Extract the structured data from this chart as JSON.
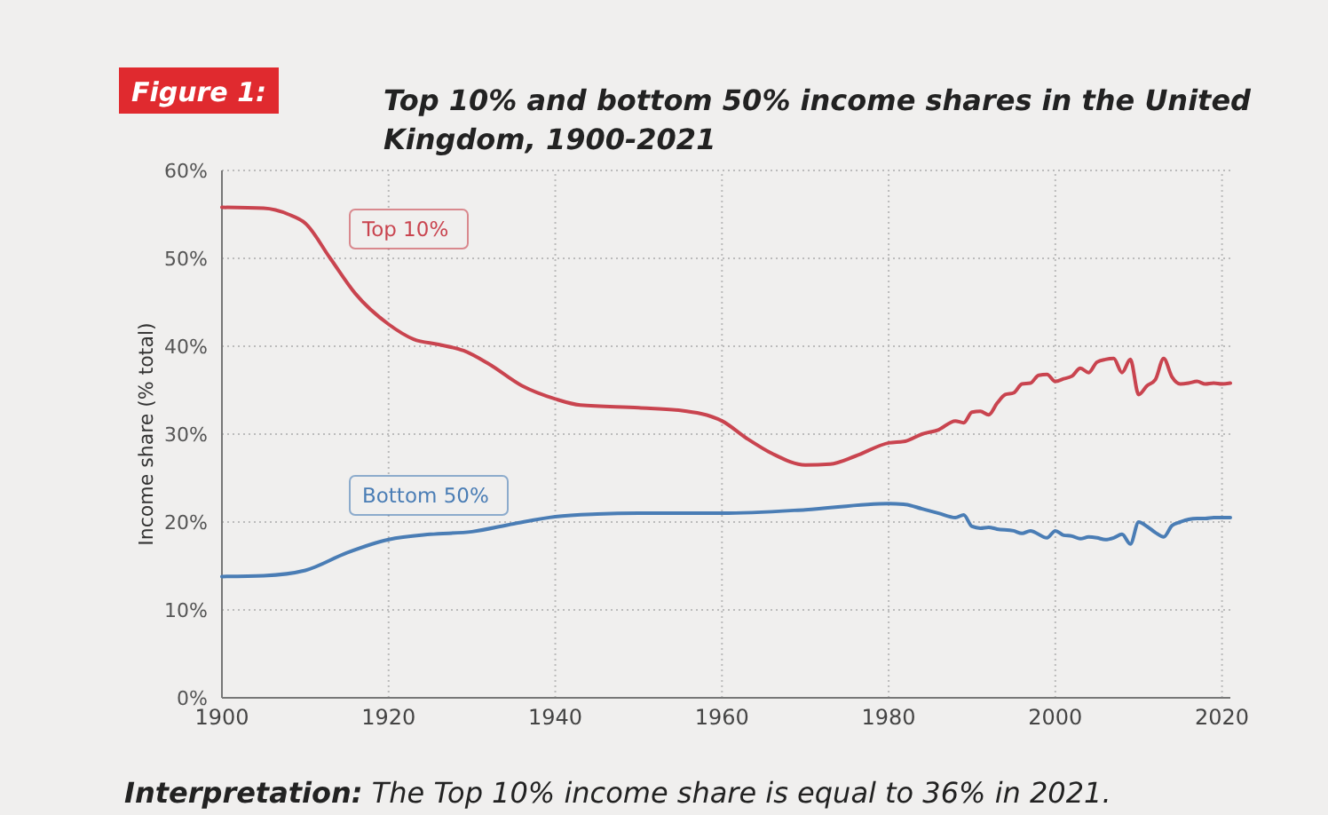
{
  "chart_data": {
    "type": "line",
    "title": "Top 10% and bottom 50% income shares in the United Kingdom, 1900-2021",
    "ylabel": "Income share (% total)",
    "annotations": [
      "Figure 1:",
      "Interpretation: The Top 10% income share is equal to 36% in 2021."
    ],
    "xlim": [
      1900,
      2021
    ],
    "xticks": [
      1900,
      1920,
      1940,
      1960,
      1980,
      2000,
      2020
    ],
    "ylim": [
      0,
      60
    ],
    "yticks": [
      {
        "value": 0,
        "label": "0%"
      },
      {
        "value": 10,
        "label": "10%"
      },
      {
        "value": 20,
        "label": "20%"
      },
      {
        "value": 30,
        "label": "30%"
      },
      {
        "value": 40,
        "label": "40%"
      },
      {
        "value": 50,
        "label": "50%"
      },
      {
        "value": 60,
        "label": "60%"
      }
    ],
    "grid": true,
    "series": [
      {
        "name": "Top 10%",
        "color": "#c9444f",
        "x": [
          1900,
          1905,
          1908,
          1910,
          1913,
          1916,
          1920,
          1923,
          1926,
          1929,
          1932,
          1936,
          1940,
          1943,
          1950,
          1955,
          1960,
          1963,
          1966,
          1970,
          1973,
          1976,
          1980,
          1982,
          1984,
          1986,
          1988,
          1989,
          1990,
          1991,
          1992,
          1993,
          1994,
          1995,
          1996,
          1997,
          1998,
          1999,
          2000,
          2001,
          2002,
          2003,
          2004,
          2005,
          2006,
          2007,
          2008,
          2009,
          2010,
          2011,
          2012,
          2013,
          2014,
          2015,
          2016,
          2017,
          2018,
          2019,
          2020,
          2021
        ],
        "values": [
          55.8,
          55.7,
          55,
          54,
          50,
          46,
          42.5,
          40.8,
          40.2,
          39.5,
          38,
          35.5,
          34,
          33.3,
          33,
          32.7,
          31.5,
          29.5,
          27.8,
          26.5,
          26.6,
          27.5,
          29,
          29.2,
          30,
          30.5,
          31.5,
          31.3,
          32.5,
          32.6,
          32.2,
          33.5,
          34.5,
          34.7,
          35.7,
          35.8,
          36.7,
          36.8,
          36,
          36.3,
          36.6,
          37.5,
          37,
          38.2,
          38.5,
          38.6,
          37,
          38.5,
          34.5,
          35.5,
          36.2,
          38.6,
          36.5,
          35.7,
          35.8,
          36,
          35.7,
          35.8,
          35.7,
          35.8
        ]
      },
      {
        "name": "Bottom 50%",
        "color": "#4a7db5",
        "x": [
          1900,
          1905,
          1910,
          1915,
          1920,
          1925,
          1930,
          1935,
          1940,
          1945,
          1950,
          1960,
          1970,
          1980,
          1982,
          1984,
          1986,
          1988,
          1989,
          1990,
          1991,
          1992,
          1993,
          1995,
          1996,
          1997,
          1999,
          2000,
          2001,
          2002,
          2003,
          2004,
          2005,
          2006,
          2007,
          2008,
          2009,
          2010,
          2011,
          2012,
          2013,
          2014,
          2015,
          2016,
          2017,
          2018,
          2019,
          2020,
          2021
        ],
        "values": [
          13.8,
          13.9,
          14.5,
          16.5,
          18,
          18.6,
          18.9,
          19.8,
          20.6,
          20.9,
          21,
          21,
          21.4,
          22.1,
          22,
          21.5,
          21,
          20.5,
          20.8,
          19.5,
          19.3,
          19.4,
          19.2,
          19,
          18.7,
          19,
          18.2,
          19,
          18.5,
          18.4,
          18.1,
          18.3,
          18.2,
          18,
          18.2,
          18.6,
          17.5,
          20,
          19.5,
          18.8,
          18.3,
          19.6,
          20,
          20.3,
          20.4,
          20.4,
          20.5,
          20.5,
          20.5
        ]
      }
    ]
  }
}
